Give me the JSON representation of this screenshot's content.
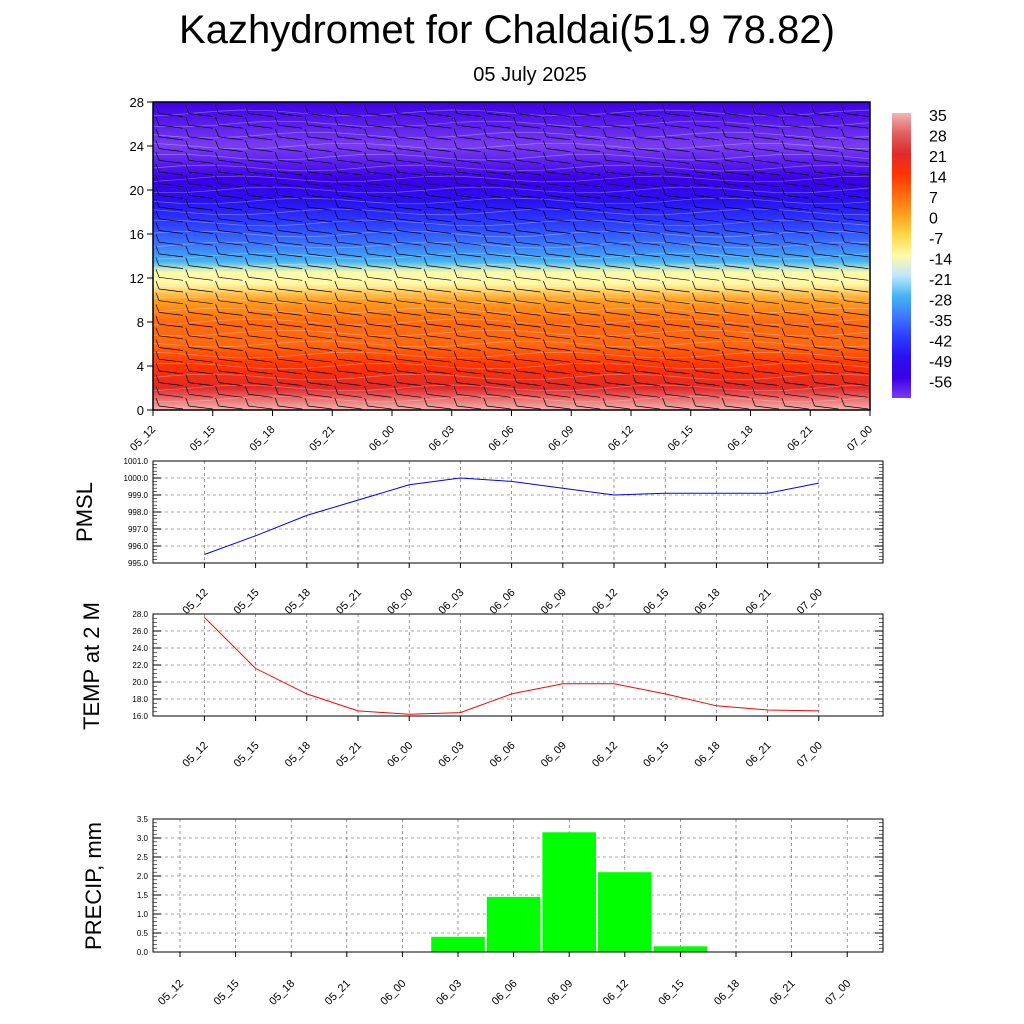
{
  "title": "Kazhydromet for Chaldai(51.9 78.82)",
  "subtitle": "05 July 2025",
  "time_labels": [
    "05_12",
    "05_15",
    "05_18",
    "05_21",
    "06_00",
    "06_03",
    "06_06",
    "06_09",
    "06_12",
    "06_15",
    "06_18",
    "06_21",
    "07_00"
  ],
  "colors": {
    "pmsl_line": "#0000ff",
    "temp_line": "#ff0000",
    "precip_bar": "#00ff00"
  },
  "chart_data": [
    {
      "type": "heatmap",
      "name": "temperature-cross-section",
      "y_ticks": [
        0,
        4,
        8,
        12,
        16,
        20,
        24,
        28
      ],
      "ylim": [
        0,
        28
      ],
      "x": [
        "05_12",
        "05_15",
        "05_18",
        "05_21",
        "06_00",
        "06_03",
        "06_06",
        "06_09",
        "06_12",
        "06_15",
        "06_18",
        "06_21",
        "07_00"
      ],
      "colorbar_labels": [
        "35",
        "28",
        "21",
        "14",
        "7",
        "0",
        "-7",
        "-14",
        "-21",
        "-28",
        "-35",
        "-42",
        "-49",
        "-56"
      ],
      "colorbar_colors": [
        "#f4b3b3",
        "#e06060",
        "#e02a2a",
        "#ff3300",
        "#ff6a10",
        "#ffa020",
        "#ffd84a",
        "#fffaa8",
        "#bfe6ff",
        "#44b4f5",
        "#3c78ff",
        "#2c3cff",
        "#2a10f0",
        "#3c00e8",
        "#7a3cf0"
      ],
      "level_field": [
        {
          "level": 0,
          "value": 35
        },
        {
          "level": 2,
          "value": 25
        },
        {
          "level": 4,
          "value": 18
        },
        {
          "level": 6,
          "value": 12
        },
        {
          "level": 8,
          "value": 7
        },
        {
          "level": 10,
          "value": 1
        },
        {
          "level": 11.5,
          "value": -8
        },
        {
          "level": 12.5,
          "value": -12
        },
        {
          "level": 13.5,
          "value": -22
        },
        {
          "level": 15,
          "value": -30
        },
        {
          "level": 17,
          "value": -38
        },
        {
          "level": 19,
          "value": -44
        },
        {
          "level": 21,
          "value": -49
        },
        {
          "level": 24,
          "value": -56
        },
        {
          "level": 28,
          "value": -52
        }
      ],
      "wind_barbs": true
    },
    {
      "type": "line",
      "name": "pmsl",
      "ylabel": "PMSL",
      "ylim": [
        995.0,
        1001.0
      ],
      "y_ticks": [
        "995.0",
        "996.0",
        "997.0",
        "998.0",
        "999.0",
        "1000.0",
        "1001.0"
      ],
      "categories": [
        "05_12",
        "05_15",
        "05_18",
        "05_21",
        "06_00",
        "06_03",
        "06_06",
        "06_09",
        "06_12",
        "06_15",
        "06_18",
        "06_21",
        "07_00"
      ],
      "values": [
        995.5,
        996.6,
        997.8,
        998.7,
        999.6,
        1000.0,
        999.8,
        999.4,
        999.0,
        999.1,
        999.1,
        999.1,
        999.7
      ],
      "grid": true
    },
    {
      "type": "line",
      "name": "temp-2m",
      "ylabel": "TEMP at 2 M",
      "ylim": [
        16.0,
        28.0
      ],
      "y_ticks": [
        "16.0",
        "18.0",
        "20.0",
        "22.0",
        "24.0",
        "26.0",
        "28.0"
      ],
      "categories": [
        "05_12",
        "05_15",
        "05_18",
        "05_21",
        "06_00",
        "06_03",
        "06_06",
        "06_09",
        "06_12",
        "06_15",
        "06_18",
        "06_21",
        "07_00"
      ],
      "values": [
        27.6,
        21.6,
        18.6,
        16.6,
        16.2,
        16.4,
        18.6,
        19.8,
        19.8,
        18.6,
        17.2,
        16.7,
        16.6
      ],
      "grid": true
    },
    {
      "type": "bar",
      "name": "precip",
      "ylabel": "PRECIP, mm",
      "ylim": [
        0.0,
        3.5
      ],
      "y_ticks": [
        "0.0",
        "0.5",
        "1.0",
        "1.5",
        "2.0",
        "2.5",
        "3.0",
        "3.5"
      ],
      "categories": [
        "05_12",
        "05_15",
        "05_18",
        "05_21",
        "06_00",
        "06_03",
        "06_06",
        "06_09",
        "06_12",
        "06_15",
        "06_18",
        "06_21",
        "07_00"
      ],
      "values": [
        0,
        0,
        0,
        0,
        0,
        0.4,
        1.45,
        3.15,
        2.1,
        0.15,
        0,
        0,
        0
      ],
      "grid": true
    }
  ]
}
